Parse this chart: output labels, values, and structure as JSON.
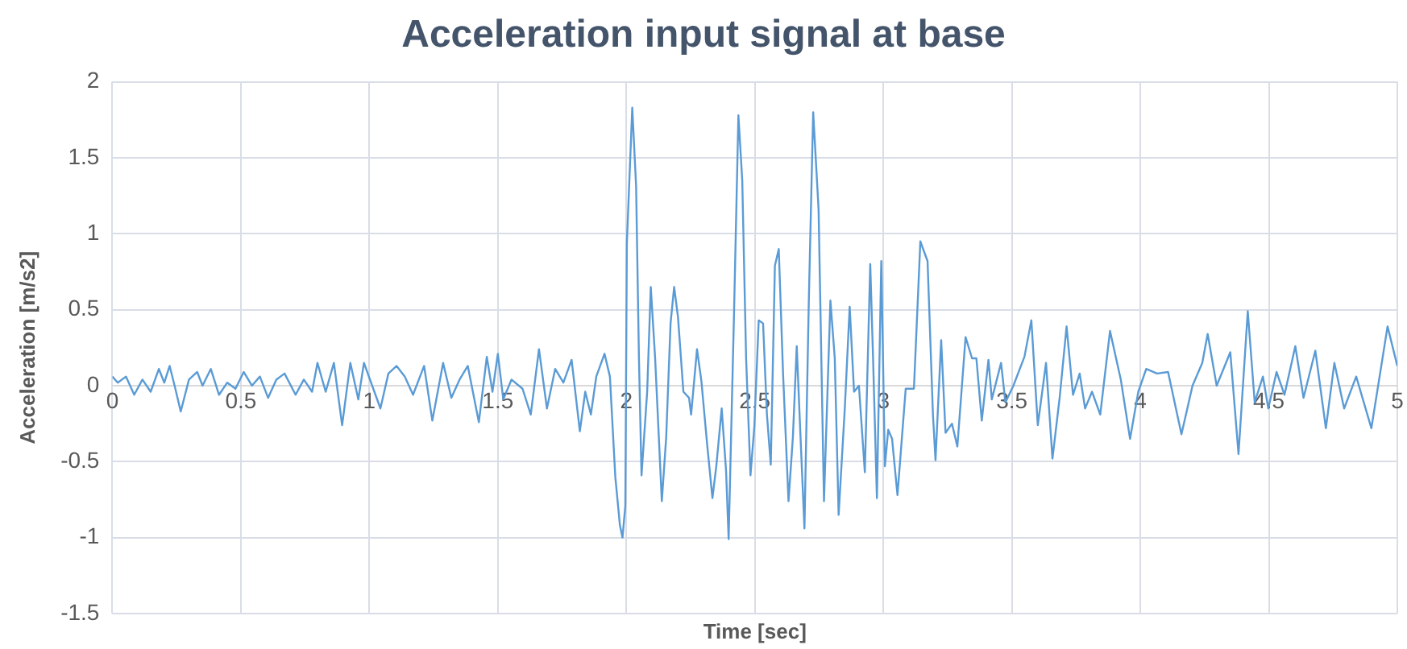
{
  "chart_data": {
    "type": "line",
    "title": "Acceleration input signal at base",
    "xlabel": "Time [sec]",
    "ylabel": "Acceleration [m/s2]",
    "xlim": [
      0,
      5
    ],
    "xticks": [
      0,
      0.5,
      1,
      1.5,
      2,
      2.5,
      3,
      3.5,
      4,
      4.5,
      5
    ],
    "ylim": [
      -1.5,
      2
    ],
    "yticks": [
      -1.5,
      -1,
      -0.5,
      0,
      0.5,
      1,
      1.5,
      2
    ],
    "grid": true,
    "legend": false,
    "marker": "none",
    "line_style": "solid",
    "series": [
      {
        "color": "#5b9bd5",
        "x": [
          0,
          0.021,
          0.053,
          0.085,
          0.117,
          0.149,
          0.181,
          0.202,
          0.223,
          0.245,
          0.266,
          0.298,
          0.33,
          0.351,
          0.383,
          0.415,
          0.447,
          0.479,
          0.511,
          0.543,
          0.574,
          0.606,
          0.638,
          0.67,
          0.713,
          0.745,
          0.777,
          0.798,
          0.83,
          0.862,
          0.894,
          0.926,
          0.957,
          0.979,
          1.011,
          1.043,
          1.074,
          1.106,
          1.138,
          1.17,
          1.213,
          1.245,
          1.287,
          1.319,
          1.351,
          1.383,
          1.426,
          1.457,
          1.479,
          1.5,
          1.521,
          1.553,
          1.596,
          1.628,
          1.66,
          1.691,
          1.723,
          1.755,
          1.787,
          1.819,
          1.84,
          1.862,
          1.883,
          1.915,
          1.936,
          1.957,
          1.975,
          1.985,
          1.996,
          2.002,
          2.023,
          2.038,
          2.049,
          2.059,
          2.081,
          2.095,
          2.112,
          2.138,
          2.155,
          2.172,
          2.186,
          2.201,
          2.222,
          2.244,
          2.252,
          2.275,
          2.292,
          2.314,
          2.335,
          2.35,
          2.371,
          2.388,
          2.398,
          2.419,
          2.436,
          2.451,
          2.466,
          2.483,
          2.498,
          2.515,
          2.532,
          2.547,
          2.562,
          2.578,
          2.593,
          2.61,
          2.631,
          2.648,
          2.663,
          2.676,
          2.693,
          2.71,
          2.727,
          2.748,
          2.769,
          2.794,
          2.811,
          2.826,
          2.85,
          2.869,
          2.886,
          2.905,
          2.928,
          2.949,
          2.96,
          2.975,
          2.992,
          3.006,
          3.019,
          3.034,
          3.055,
          3.087,
          3.119,
          3.144,
          3.172,
          3.193,
          3.203,
          3.225,
          3.242,
          3.267,
          3.288,
          3.32,
          3.345,
          3.362,
          3.383,
          3.409,
          3.422,
          3.458,
          3.475,
          3.506,
          3.549,
          3.576,
          3.601,
          3.633,
          3.658,
          3.686,
          3.713,
          3.738,
          3.764,
          3.785,
          3.812,
          3.844,
          3.882,
          3.924,
          3.96,
          3.992,
          4.023,
          4.065,
          4.108,
          4.16,
          4.203,
          4.241,
          4.262,
          4.297,
          4.35,
          4.382,
          4.418,
          4.445,
          4.477,
          4.498,
          4.53,
          4.561,
          4.603,
          4.635,
          4.681,
          4.722,
          4.755,
          4.793,
          4.84,
          4.899,
          4.962,
          5
        ],
        "values": [
          0.06,
          0.02,
          0.06,
          -0.06,
          0.04,
          -0.04,
          0.11,
          0.02,
          0.13,
          -0.02,
          -0.17,
          0.04,
          0.09,
          0,
          0.11,
          -0.06,
          0.02,
          -0.02,
          0.09,
          0,
          0.06,
          -0.08,
          0.04,
          0.08,
          -0.06,
          0.04,
          -0.04,
          0.15,
          -0.04,
          0.15,
          -0.26,
          0.15,
          -0.09,
          0.15,
          0,
          -0.15,
          0.08,
          0.13,
          0.06,
          -0.06,
          0.13,
          -0.23,
          0.15,
          -0.08,
          0.04,
          0.13,
          -0.24,
          0.19,
          -0.04,
          0.21,
          -0.09,
          0.04,
          -0.02,
          -0.19,
          0.24,
          -0.15,
          0.11,
          0.02,
          0.17,
          -0.3,
          -0.04,
          -0.19,
          0.06,
          0.21,
          0.06,
          -0.6,
          -0.92,
          -1,
          -0.79,
          0.94,
          1.83,
          1.31,
          0.18,
          -0.59,
          -0.04,
          0.65,
          0.18,
          -0.76,
          -0.34,
          0.41,
          0.65,
          0.45,
          -0.04,
          -0.08,
          -0.19,
          0.24,
          0.03,
          -0.38,
          -0.74,
          -0.53,
          -0.15,
          -0.56,
          -1.01,
          0.48,
          1.78,
          1.35,
          0.18,
          -0.59,
          -0.27,
          0.43,
          0.41,
          -0.19,
          -0.52,
          0.79,
          0.9,
          0.07,
          -0.76,
          -0.34,
          0.26,
          -0.27,
          -0.94,
          0.56,
          1.8,
          1.16,
          -0.76,
          0.56,
          0.18,
          -0.85,
          -0.15,
          0.52,
          -0.04,
          0,
          -0.57,
          0.8,
          0.18,
          -0.74,
          0.82,
          -0.53,
          -0.29,
          -0.35,
          -0.72,
          -0.02,
          -0.02,
          0.95,
          0.82,
          -0.19,
          -0.49,
          0.3,
          -0.31,
          -0.25,
          -0.4,
          0.32,
          0.18,
          0.18,
          -0.23,
          0.17,
          -0.09,
          0.15,
          -0.11,
          0,
          0.19,
          0.43,
          -0.26,
          0.15,
          -0.48,
          -0.08,
          0.39,
          -0.06,
          0.08,
          -0.15,
          -0.04,
          -0.19,
          0.36,
          0.04,
          -0.35,
          -0.04,
          0.11,
          0.08,
          0.09,
          -0.32,
          0,
          0.15,
          0.34,
          0,
          0.22,
          -0.45,
          0.49,
          -0.11,
          0.06,
          -0.15,
          0.09,
          -0.06,
          0.26,
          -0.08,
          0.23,
          -0.28,
          0.15,
          -0.15,
          0.06,
          -0.28,
          0.39,
          0.13
        ]
      }
    ]
  }
}
